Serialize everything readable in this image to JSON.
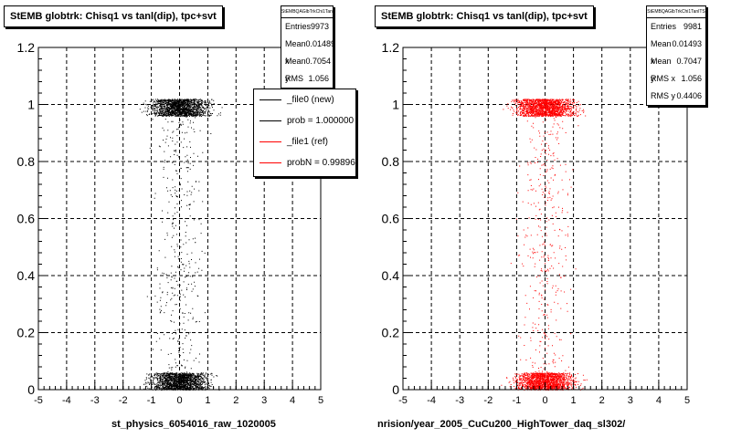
{
  "chart_data": [
    {
      "type": "scatter",
      "title": "StEMB globtrk: Chisq1 vs tanl(dip), tpc+svt",
      "xlabel": "st_physics_6054016_raw_1020005",
      "ylabel": "",
      "xlim": [
        -5,
        5
      ],
      "ylim": [
        0,
        1.2
      ],
      "x_ticks": [
        -5,
        -4,
        -3,
        -2,
        -1,
        0,
        1,
        2,
        3,
        4,
        5
      ],
      "y_ticks": [
        0,
        0.2,
        0.4,
        0.6,
        0.8,
        1,
        1.2
      ],
      "grid": true,
      "marker_color": "#000000",
      "stats": {
        "name": "StEMBQAGlbTrkChi1TanlTS",
        "entries": "9973",
        "mean_x": "0.01489",
        "mean_y": "0.7054",
        "rms_x": "1.056",
        "rms_y": ""
      },
      "legend": [
        {
          "label": "_file0 (new)",
          "color": "#000000"
        },
        {
          "label": "prob = 1.000000",
          "color": "#000000"
        },
        {
          "label": "_file1 (ref)",
          "color": "#ff0000"
        },
        {
          "label": "probN = 0.998966",
          "color": "#ff0000"
        }
      ],
      "legend_position": "top-right",
      "distribution": [
        {
          "band": "y≈1",
          "y_range": [
            0.96,
            1.02
          ],
          "x_range": [
            -2.7,
            2.7
          ],
          "density": "high"
        },
        {
          "band": "y≈0",
          "y_range": [
            0.0,
            0.06
          ],
          "x_range": [
            -2.7,
            2.7
          ],
          "density": "high"
        },
        {
          "band": "sparse",
          "y_range": [
            0.06,
            0.96
          ],
          "x_range": [
            -2.5,
            2.5
          ],
          "density": "low"
        }
      ]
    },
    {
      "type": "scatter",
      "title": "StEMB globtrk: Chisq1 vs tanl(dip), tpc+svt",
      "xlabel": "nrision/year_2005_CuCu200_HighTower_daq_sl302/",
      "ylabel": "",
      "xlim": [
        -5,
        5
      ],
      "ylim": [
        0,
        1.2
      ],
      "x_ticks": [
        -5,
        -4,
        -3,
        -2,
        -1,
        0,
        1,
        2,
        3,
        4,
        5
      ],
      "y_ticks": [
        0,
        0.2,
        0.4,
        0.6,
        0.8,
        1,
        1.2
      ],
      "grid": true,
      "marker_color": "#ff0000",
      "stats": {
        "name": "StEMBQAGlbTrkChi1TanlTS",
        "entries": "9981",
        "mean_x": "0.01493",
        "mean_y": "0.7047",
        "rms_x": "1.056",
        "rms_y": "0.4406"
      },
      "distribution": [
        {
          "band": "y≈1",
          "y_range": [
            0.96,
            1.02
          ],
          "x_range": [
            -2.7,
            2.7
          ],
          "density": "high"
        },
        {
          "band": "y≈0",
          "y_range": [
            0.0,
            0.06
          ],
          "x_range": [
            -2.7,
            2.7
          ],
          "density": "high"
        },
        {
          "band": "sparse",
          "y_range": [
            0.06,
            0.96
          ],
          "x_range": [
            -2.5,
            2.5
          ],
          "density": "low"
        }
      ]
    }
  ],
  "stat_labels": {
    "entries": "Entries",
    "mean_x": "Mean x",
    "mean_y": "Mean y",
    "rms_x": "RMS x",
    "rms_y": "RMS y"
  }
}
